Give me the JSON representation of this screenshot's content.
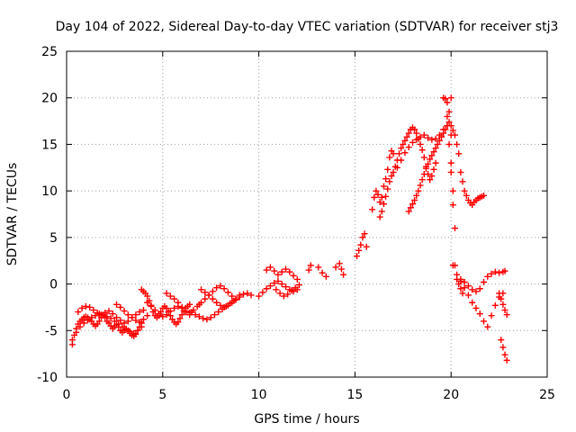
{
  "chart_data": {
    "type": "scatter",
    "title": "Day 104 of 2022, Sidereal Day-to-day VTEC variation (SDTVAR) for receiver stj3",
    "xlabel": "GPS time / hours",
    "ylabel": "SDTVAR / TECUs",
    "xlim": [
      0,
      25
    ],
    "ylim": [
      -10,
      25
    ],
    "xticks": [
      0,
      5,
      10,
      15,
      20,
      25
    ],
    "yticks": [
      -10,
      -5,
      0,
      5,
      10,
      15,
      20,
      25
    ],
    "grid": true,
    "marker": "+",
    "color": "#ff0000",
    "series": [
      {
        "name": "SDTVAR",
        "x": [
          0.3,
          0.4,
          0.5,
          0.6,
          0.7,
          0.8,
          0.9,
          1.0,
          1.1,
          1.2,
          1.3,
          1.4,
          1.5,
          1.6,
          1.7,
          1.8,
          1.9,
          2.0,
          2.1,
          2.2,
          2.3,
          2.4,
          2.5,
          2.6,
          2.7,
          2.8,
          2.9,
          3.0,
          3.1,
          3.2,
          3.3,
          3.4,
          3.5,
          3.6,
          3.7,
          3.8,
          3.9,
          0.3,
          0.5,
          0.7,
          0.9,
          1.1,
          1.3,
          1.5,
          1.7,
          1.9,
          2.1,
          2.3,
          2.5,
          2.7,
          2.9,
          3.1,
          3.3,
          3.5,
          3.7,
          3.9,
          0.6,
          0.8,
          1.0,
          1.2,
          1.4,
          1.6,
          1.8,
          2.0,
          2.2,
          2.4,
          2.6,
          2.8,
          3.0,
          3.2,
          3.4,
          3.6,
          3.8,
          4.0,
          2.6,
          2.8,
          3.0,
          3.2,
          3.4,
          3.6,
          3.8,
          4.0,
          4.2,
          3.9,
          4.0,
          4.1,
          4.2,
          4.3,
          4.4,
          4.5,
          4.6,
          4.7,
          4.8,
          4.9,
          5.0,
          5.1,
          5.2,
          5.3,
          5.4,
          5.5,
          5.6,
          5.7,
          5.8,
          5.9,
          6.0,
          6.1,
          6.2,
          6.3,
          6.4,
          4.2,
          4.4,
          4.6,
          4.8,
          5.0,
          5.2,
          5.4,
          5.6,
          5.8,
          6.0,
          6.2,
          6.4,
          5.2,
          5.4,
          5.6,
          5.8,
          6.0,
          6.2,
          6.4,
          6.6,
          6.8,
          6.9,
          7.0,
          7.2,
          7.4,
          7.6,
          7.8,
          8.0,
          8.2,
          8.4,
          8.6,
          8.8,
          9.0,
          6.5,
          6.7,
          6.9,
          7.1,
          7.3,
          7.5,
          7.7,
          7.9,
          8.1,
          8.3,
          8.5,
          8.7,
          7.0,
          7.2,
          7.4,
          7.6,
          7.8,
          8.0,
          8.2,
          8.4,
          8.6,
          8.8,
          9.0,
          9.2,
          9.4,
          9.6,
          10.0,
          10.2,
          10.4,
          10.6,
          10.8,
          11.0,
          11.2,
          11.4,
          11.6,
          11.8,
          12.0,
          10.4,
          10.6,
          10.8,
          11.0,
          11.2,
          11.4,
          11.6,
          11.8,
          12.0,
          10.9,
          11.1,
          11.3,
          11.5,
          11.7,
          11.9,
          12.1,
          12.6,
          12.7,
          13.1,
          13.3,
          13.5,
          14.0,
          14.2,
          14.3,
          14.4,
          15.1,
          15.2,
          15.3,
          15.4,
          15.5,
          15.6,
          15.9,
          16.0,
          16.1,
          16.2,
          16.3,
          16.4,
          16.5,
          16.6,
          16.7,
          16.8,
          16.9,
          17.0,
          16.3,
          16.4,
          16.5,
          16.6,
          16.7,
          16.8,
          16.9,
          17.0,
          17.1,
          17.2,
          17.3,
          17.4,
          17.5,
          17.6,
          17.7,
          17.8,
          17.9,
          18.0,
          18.1,
          18.2,
          18.3,
          18.4,
          18.5,
          18.6,
          18.7,
          18.8,
          18.9,
          19.0,
          19.1,
          19.2,
          17.8,
          17.9,
          18.0,
          18.1,
          18.2,
          18.3,
          18.4,
          18.5,
          18.6,
          18.7,
          18.8,
          18.9,
          19.0,
          19.1,
          19.2,
          19.3,
          19.4,
          19.5,
          19.6,
          19.7,
          19.8,
          19.9,
          17.2,
          17.4,
          17.6,
          17.8,
          18.0,
          18.2,
          18.4,
          18.6,
          18.8,
          19.0,
          19.2,
          19.4,
          19.6,
          19.8,
          20.0,
          19.6,
          19.7,
          19.8,
          19.8,
          19.9,
          19.9,
          20.0,
          20.0,
          20.0,
          20.1,
          20.1,
          20.2,
          20.2,
          20.3,
          20.4,
          20.5,
          20.6,
          20.0,
          20.1,
          20.2,
          20.3,
          20.4,
          20.5,
          20.6,
          20.7,
          20.8,
          20.9,
          21.0,
          21.1,
          21.2,
          21.3,
          21.4,
          21.5,
          21.6,
          21.7,
          20.1,
          20.3,
          20.5,
          20.7,
          20.9,
          21.1,
          21.3,
          21.5,
          21.7,
          21.9,
          22.1,
          22.3,
          22.5,
          22.7,
          20.5,
          20.7,
          20.9,
          21.1,
          21.3,
          21.5,
          21.7,
          21.9,
          22.1,
          22.3,
          22.5,
          22.7,
          22.8,
          22.5,
          22.6,
          22.7,
          22.8,
          22.9,
          22.6,
          22.7,
          22.8,
          22.9
        ],
        "y": [
          -6.5,
          -5.5,
          -4.8,
          -4.3,
          -4.0,
          -3.8,
          -3.6,
          -3.5,
          -3.6,
          -3.8,
          -4.0,
          -4.3,
          -4.5,
          -4.3,
          -4.0,
          -3.6,
          -3.4,
          -3.6,
          -4.0,
          -4.2,
          -4.5,
          -4.8,
          -4.6,
          -4.4,
          -4.6,
          -5.0,
          -5.2,
          -5.0,
          -4.8,
          -5.0,
          -5.3,
          -5.5,
          -5.6,
          -5.4,
          -5.0,
          -4.6,
          -4.2,
          -6.0,
          -5.2,
          -4.6,
          -4.2,
          -3.9,
          -3.6,
          -3.4,
          -3.2,
          -3.3,
          -3.5,
          -3.7,
          -4.0,
          -4.3,
          -4.6,
          -4.9,
          -5.1,
          -5.3,
          -5.0,
          -4.6,
          -3.0,
          -2.6,
          -2.4,
          -2.5,
          -2.8,
          -3.1,
          -3.3,
          -3.1,
          -2.9,
          -3.2,
          -3.6,
          -3.9,
          -4.2,
          -4.0,
          -3.6,
          -3.3,
          -3.0,
          -2.8,
          -2.2,
          -2.5,
          -2.9,
          -3.3,
          -3.6,
          -3.9,
          -4.1,
          -3.8,
          -3.4,
          -0.6,
          -0.8,
          -1.0,
          -1.3,
          -1.8,
          -2.4,
          -3.0,
          -3.4,
          -3.6,
          -3.4,
          -3.0,
          -2.6,
          -2.4,
          -2.6,
          -3.0,
          -3.4,
          -3.8,
          -4.1,
          -4.3,
          -4.1,
          -3.7,
          -3.3,
          -2.9,
          -2.6,
          -2.4,
          -2.2,
          -2.0,
          -2.3,
          -2.8,
          -3.2,
          -3.5,
          -3.3,
          -2.9,
          -2.6,
          -2.4,
          -2.6,
          -3.0,
          -3.3,
          -1.0,
          -1.3,
          -1.6,
          -2.0,
          -2.5,
          -2.9,
          -3.1,
          -2.8,
          -2.4,
          -2.2,
          -2.0,
          -1.6,
          -1.2,
          -0.8,
          -0.4,
          -0.2,
          -0.5,
          -0.9,
          -1.3,
          -1.6,
          -1.2,
          -3.0,
          -3.3,
          -3.5,
          -3.7,
          -3.8,
          -3.6,
          -3.3,
          -3.0,
          -2.7,
          -2.4,
          -2.1,
          -1.8,
          -0.6,
          -0.9,
          -1.2,
          -1.6,
          -2.0,
          -2.3,
          -2.5,
          -2.3,
          -2.0,
          -1.7,
          -1.4,
          -1.1,
          -1.0,
          -1.2,
          -1.3,
          -0.9,
          -0.5,
          -0.2,
          0.1,
          0.3,
          0.0,
          -0.3,
          -0.6,
          -0.8,
          -0.6,
          1.5,
          1.8,
          1.4,
          1.0,
          1.3,
          1.6,
          1.3,
          0.9,
          0.5,
          -0.6,
          -1.0,
          -1.3,
          -1.1,
          -0.7,
          -0.4,
          -0.1,
          1.5,
          2.0,
          1.8,
          1.2,
          0.8,
          1.8,
          2.2,
          1.6,
          1.0,
          3.0,
          3.6,
          4.2,
          5.0,
          5.4,
          4.0,
          8.0,
          9.3,
          10.0,
          9.6,
          8.8,
          9.3,
          10.5,
          11.3,
          12.3,
          13.6,
          14.3,
          14.0,
          7.2,
          7.8,
          8.6,
          9.4,
          10.2,
          11.0,
          11.6,
          12.0,
          12.6,
          13.3,
          14.0,
          14.6,
          15.0,
          15.4,
          15.8,
          16.2,
          16.6,
          16.8,
          16.6,
          16.2,
          15.6,
          15.0,
          14.4,
          13.6,
          12.6,
          11.8,
          11.2,
          11.6,
          12.3,
          13.0,
          7.8,
          8.2,
          8.6,
          9.0,
          9.5,
          10.0,
          10.6,
          11.2,
          11.8,
          12.4,
          12.9,
          13.4,
          13.8,
          14.2,
          14.6,
          15.0,
          15.4,
          15.8,
          16.2,
          16.6,
          17.0,
          17.4,
          12.5,
          13.3,
          14.1,
          14.7,
          15.2,
          15.5,
          15.8,
          16.0,
          15.7,
          15.5,
          15.6,
          16.0,
          16.6,
          18.0,
          20.0,
          20.0,
          19.9,
          17.0,
          19.5,
          15.0,
          18.5,
          12.0,
          16.0,
          13.0,
          10.0,
          8.5,
          6.0,
          2.0,
          0.5,
          0.0,
          -0.5,
          -1.0,
          17.0,
          16.5,
          16.0,
          15.0,
          14.0,
          12.0,
          11.0,
          10.0,
          9.5,
          9.0,
          8.7,
          8.5,
          8.8,
          9.0,
          9.2,
          9.3,
          9.4,
          9.5,
          2.0,
          1.0,
          0.3,
          -0.4,
          -1.2,
          -2.0,
          -2.6,
          -3.2,
          -4.0,
          -4.6,
          -3.4,
          -2.3,
          -1.4,
          -1.0,
          0.5,
          0.2,
          -0.2,
          -0.6,
          -0.8,
          -0.5,
          0.2,
          0.8,
          1.1,
          1.3,
          1.2,
          1.3,
          1.4,
          -1.0,
          -1.6,
          -2.2,
          -2.8,
          -3.3,
          -6.0,
          -6.8,
          -7.6,
          -8.2
        ]
      }
    ]
  }
}
